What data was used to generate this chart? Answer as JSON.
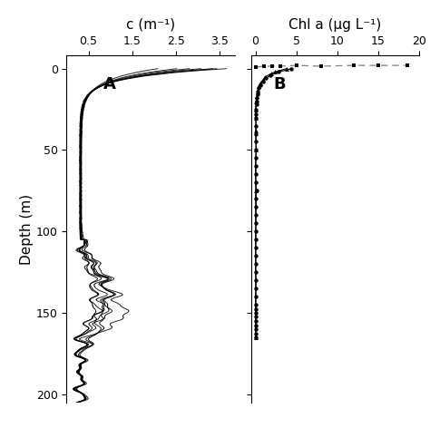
{
  "title_A": "c (m⁻¹)",
  "title_B": "Chl a (μg L⁻¹)",
  "ylabel": "Depth (m)",
  "label_A": "A",
  "label_B": "B",
  "xlim_A": [
    0.0,
    3.85
  ],
  "xticks_A": [
    0.5,
    1.5,
    2.5,
    3.5
  ],
  "xlim_B": [
    -0.5,
    20
  ],
  "xticks_B": [
    0,
    5,
    10,
    15,
    20
  ],
  "ylim": [
    205,
    -8
  ],
  "yticks": [
    0,
    50,
    100,
    150,
    200
  ],
  "background_color": "#ffffff",
  "line_color": "#000000"
}
